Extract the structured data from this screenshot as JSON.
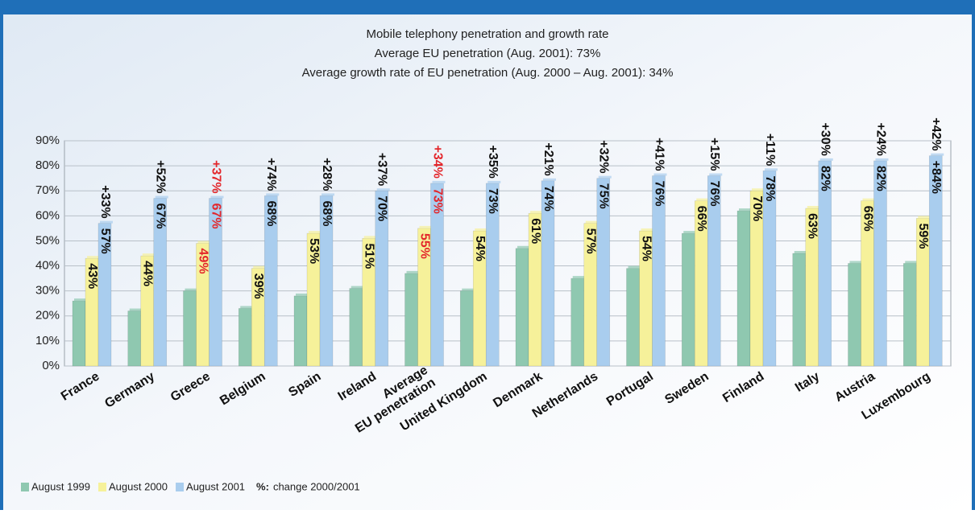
{
  "chart_data": {
    "type": "bar",
    "title": "Mobile telephony penetration and growth rate",
    "subtitle": [
      "Average EU penetration (Aug. 2001): 73%",
      "Average growth rate of EU penetration (Aug. 2000 – Aug. 2001): 34%"
    ],
    "categories": [
      "France",
      "Germany",
      "Greece",
      "Belgium",
      "Spain",
      "Ireland",
      "Average\nEU penetration",
      "United Kingdom",
      "Denmark",
      "Netherlands",
      "Portugal",
      "Sweden",
      "Finland",
      "Italy",
      "Austria",
      "Luxembourg"
    ],
    "series": [
      {
        "name": "August 1999",
        "color": "#8fc8b0",
        "values": [
          26,
          22,
          30,
          23,
          28,
          31,
          37,
          30,
          47,
          35,
          39,
          53,
          62,
          45,
          41,
          41
        ]
      },
      {
        "name": "August 2000",
        "color": "#f6f19a",
        "values": [
          43,
          44,
          49,
          39,
          53,
          51,
          55,
          54,
          61,
          57,
          54,
          66,
          70,
          63,
          66,
          59
        ],
        "value_labels": [
          "43%",
          "44%",
          "49%",
          "39%",
          "53%",
          "51%",
          "55%",
          "54%",
          "61%",
          "57%",
          "54%",
          "66%",
          "70%",
          "63%",
          "66%",
          "59%"
        ]
      },
      {
        "name": "August 2001",
        "color": "#a9cdee",
        "values": [
          57,
          67,
          67,
          68,
          68,
          70,
          73,
          73,
          74,
          75,
          76,
          76,
          78,
          82,
          82,
          84
        ],
        "value_labels": [
          "57%",
          "67%",
          "67%",
          "68%",
          "68%",
          "70%",
          "73%",
          "73%",
          "74%",
          "75%",
          "76%",
          "76%",
          "78%",
          "82%",
          "82%",
          "+84%"
        ]
      }
    ],
    "change_labels": [
      "+33%",
      "+52%",
      "+37%",
      "+74%",
      "+28%",
      "+37%",
      "+34%",
      "+35%",
      "+21%",
      "+32%",
      "+41%",
      "+15%",
      "+11%",
      "+30%",
      "+24%",
      "+42%"
    ],
    "highlight_categories": [
      "Greece",
      "Average\nEU penetration"
    ],
    "highlight_color": "#e3262b",
    "legend_note": {
      "key": "%:",
      "text": "change 2000/2001"
    },
    "ylim": [
      0,
      90
    ],
    "yticks": [
      {
        "value": 0,
        "label": "0%"
      },
      {
        "value": 10,
        "label": "10%"
      },
      {
        "value": 20,
        "label": "20%"
      },
      {
        "value": 30,
        "label": "30%"
      },
      {
        "value": 40,
        "label": "40%"
      },
      {
        "value": 50,
        "label": "50%"
      },
      {
        "value": 60,
        "label": "60%"
      },
      {
        "value": 70,
        "label": "70%"
      },
      {
        "value": 80,
        "label": "80%"
      },
      {
        "value": 90,
        "label": "90%"
      }
    ],
    "grid": true
  }
}
